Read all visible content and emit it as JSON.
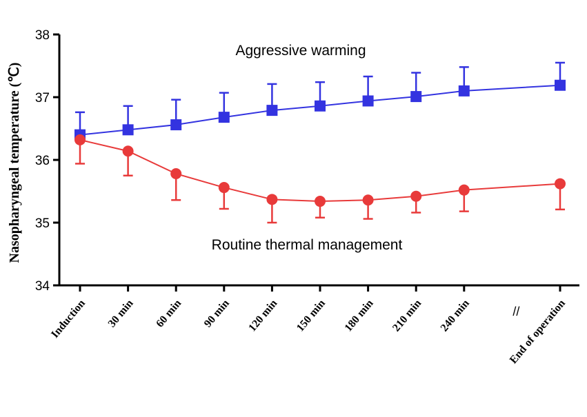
{
  "chart_data": {
    "type": "line",
    "title": "",
    "xlabel": "",
    "ylabel": "Nasopharyngeal temperature (℃)",
    "ylim": [
      34,
      38
    ],
    "yticks": [
      34,
      35,
      36,
      37,
      38
    ],
    "categories": [
      "Induction",
      "30 min",
      "60 min",
      "90 min",
      "120 min",
      "150 min",
      "180 min",
      "210 min",
      "240 min",
      "//",
      "End of operation"
    ],
    "axis_break_label": "//",
    "series": [
      {
        "name": "Aggressive warming",
        "color": "#3333e0",
        "marker": "square",
        "values": [
          36.4,
          36.48,
          36.56,
          36.68,
          36.79,
          36.86,
          36.94,
          37.01,
          37.1,
          null,
          37.19
        ],
        "error_upper": [
          36.76,
          36.86,
          36.96,
          37.07,
          37.21,
          37.24,
          37.33,
          37.39,
          37.48,
          null,
          37.55
        ]
      },
      {
        "name": "Routine thermal management",
        "color": "#e83a3a",
        "marker": "circle",
        "values": [
          36.32,
          36.14,
          35.78,
          35.56,
          35.37,
          35.34,
          35.36,
          35.42,
          35.52,
          null,
          35.62
        ],
        "error_lower": [
          35.94,
          35.75,
          35.36,
          35.22,
          35.0,
          35.08,
          35.06,
          35.16,
          35.18,
          null,
          35.21
        ]
      }
    ]
  }
}
